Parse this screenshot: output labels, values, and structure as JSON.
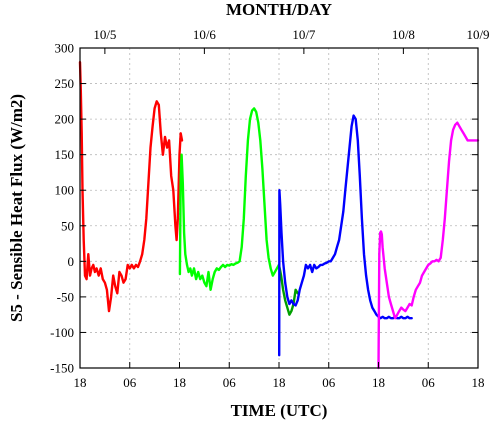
{
  "chart_data": {
    "type": "line",
    "title": "",
    "xlabel": "TIME (UTC)",
    "x2label": "MONTH/DAY",
    "ylabel": "S5 - Sensible Heat Flux (W/m2)",
    "ylim": [
      -150,
      300
    ],
    "yticks": [
      -150,
      -100,
      -50,
      0,
      50,
      100,
      150,
      200,
      250,
      300
    ],
    "xlim": [
      0,
      96
    ],
    "x_unit": "hours since 10/4 18 UTC",
    "xticks": [
      0,
      12,
      24,
      36,
      48,
      60,
      72,
      84,
      96
    ],
    "xtick_labels": [
      "18",
      "06",
      "18",
      "06",
      "18",
      "06",
      "18",
      "06",
      "18"
    ],
    "x2ticks": [
      6,
      30,
      54,
      78,
      102
    ],
    "x2tick_labels": [
      "10/5",
      "10/6",
      "10/7",
      "10/8",
      "10/9"
    ],
    "grid": true,
    "series": [
      {
        "color": "#ff0000",
        "x": [
          0.0,
          0.2,
          0.4,
          0.6,
          0.9,
          1.2,
          1.6,
          2.0,
          2.4,
          2.8,
          3.2,
          3.6,
          4.0,
          4.5,
          5.0,
          5.5,
          6.0,
          6.5,
          7.0,
          7.5,
          8.0,
          8.5,
          9.0,
          9.5,
          10.0,
          10.5,
          11.0,
          11.5,
          12.0,
          12.5,
          13.0,
          13.5,
          14.0,
          14.5,
          15.0,
          15.5,
          16.0,
          16.5,
          17.0,
          17.5,
          18.0,
          18.5,
          19.0,
          19.5,
          20.0,
          20.5,
          21.0,
          21.5,
          22.0,
          22.5,
          23.0,
          23.3,
          23.6,
          24.0,
          24.3,
          24.6
        ],
        "y": [
          280,
          240,
          180,
          100,
          30,
          -20,
          -25,
          10,
          -20,
          -10,
          -5,
          -15,
          -10,
          -20,
          -10,
          -25,
          -30,
          -40,
          -70,
          -50,
          -20,
          -35,
          -45,
          -15,
          -20,
          -30,
          -25,
          -5,
          -10,
          -5,
          -10,
          -5,
          -8,
          0,
          10,
          30,
          60,
          110,
          160,
          190,
          215,
          225,
          220,
          180,
          150,
          175,
          160,
          170,
          120,
          100,
          50,
          30,
          60,
          150,
          180,
          170
        ]
      },
      {
        "color": "#00ff00",
        "x": [
          24.1,
          24.3,
          24.5,
          24.8,
          25.1,
          25.4,
          25.8,
          26.2,
          26.6,
          27.0,
          27.5,
          28.0,
          28.5,
          29.0,
          29.5,
          30.0,
          30.5,
          31.0,
          31.5,
          32.0,
          32.5,
          33.0,
          33.5,
          34.0,
          34.5,
          35.0,
          35.5,
          36.0,
          36.5,
          37.0,
          37.5,
          38.0,
          38.5,
          39.0,
          39.5,
          40.0,
          40.5,
          41.0,
          41.5,
          42.0,
          42.5,
          43.0,
          43.5,
          44.0,
          44.5,
          45.0,
          45.5,
          46.0,
          46.5,
          47.0,
          47.5,
          48.0
        ],
        "y": [
          -18,
          120,
          150,
          110,
          40,
          10,
          -5,
          -15,
          -10,
          -20,
          -10,
          -25,
          -15,
          -25,
          -20,
          -30,
          -35,
          -15,
          -40,
          -25,
          -15,
          -10,
          -12,
          -8,
          -5,
          -8,
          -5,
          -6,
          -4,
          -5,
          -3,
          -2,
          0,
          20,
          60,
          120,
          170,
          200,
          212,
          215,
          210,
          195,
          170,
          130,
          80,
          30,
          5,
          -10,
          -20,
          -15,
          -10,
          -5
        ]
      },
      {
        "color": "#00a000",
        "x": [
          48.0,
          48.5,
          49.0,
          49.5,
          50.0,
          50.5,
          51.0,
          51.5,
          52.0,
          52.5
        ],
        "y": [
          -5,
          -20,
          -40,
          -55,
          -65,
          -75,
          -70,
          -60,
          -40,
          -45
        ]
      },
      {
        "color": "#0000ff",
        "x": [
          48.05,
          48.1,
          48.3,
          48.6,
          49.0,
          49.5,
          50.0,
          50.5,
          51.0,
          51.5,
          52.0,
          52.5,
          53.0,
          53.5,
          54.0,
          54.5,
          55.0,
          55.5,
          56.0,
          56.5,
          57.0,
          57.5,
          58.0,
          58.5,
          59.0,
          59.5,
          60.0,
          60.5,
          61.0,
          61.5,
          62.0,
          62.5,
          63.0,
          63.5,
          64.0,
          64.5,
          65.0,
          65.5,
          66.0,
          66.5,
          67.0,
          67.5,
          68.0,
          68.5,
          69.0,
          69.5,
          70.0,
          70.5,
          71.0,
          71.5,
          72.0,
          72.5,
          73.0,
          73.5,
          74.0,
          74.5,
          75.0,
          75.5,
          76.0,
          76.5,
          77.0,
          77.5,
          78.0,
          78.5,
          79.0,
          79.5,
          80.0
        ],
        "y": [
          -132,
          100,
          80,
          40,
          0,
          -30,
          -50,
          -60,
          -55,
          -60,
          -62,
          -55,
          -40,
          -30,
          -20,
          -5,
          -10,
          -5,
          -15,
          -5,
          -10,
          -8,
          -5,
          -5,
          -3,
          -2,
          0,
          0,
          5,
          10,
          20,
          30,
          50,
          70,
          100,
          130,
          160,
          190,
          205,
          200,
          170,
          120,
          60,
          10,
          -20,
          -40,
          -55,
          -65,
          -70,
          -75,
          -78,
          -80,
          -78,
          -80,
          -80,
          -78,
          -80,
          -80,
          -78,
          -80,
          -80,
          -78,
          -80,
          -80,
          -78,
          -80,
          -80
        ]
      },
      {
        "color": "#ff00ff",
        "x": [
          72.0,
          72.2,
          72.4,
          72.6,
          72.8,
          73.0,
          73.5,
          74.0,
          74.5,
          75.0,
          75.5,
          76.0,
          76.5,
          77.0,
          77.5,
          78.0,
          78.5,
          79.0,
          79.5,
          80.0,
          80.5,
          81.0,
          81.5,
          82.0,
          82.5,
          83.0,
          83.5,
          84.0,
          84.5,
          85.0,
          85.5,
          86.0,
          86.5,
          87.0,
          87.5,
          88.0,
          88.5,
          89.0,
          89.5,
          90.0,
          90.5,
          91.0,
          91.5,
          92.0,
          92.5,
          93.0,
          93.5,
          94.0,
          94.5,
          95.0,
          95.5,
          96.0
        ],
        "y": [
          -150,
          10,
          40,
          42,
          38,
          20,
          -10,
          -30,
          -50,
          -60,
          -70,
          -80,
          -75,
          -70,
          -65,
          -68,
          -70,
          -65,
          -60,
          -62,
          -50,
          -40,
          -35,
          -30,
          -20,
          -15,
          -10,
          -5,
          -3,
          0,
          0,
          2,
          0,
          5,
          30,
          60,
          100,
          140,
          170,
          185,
          192,
          195,
          190,
          185,
          180,
          175,
          170,
          170,
          170,
          170,
          170,
          170
        ]
      }
    ]
  }
}
